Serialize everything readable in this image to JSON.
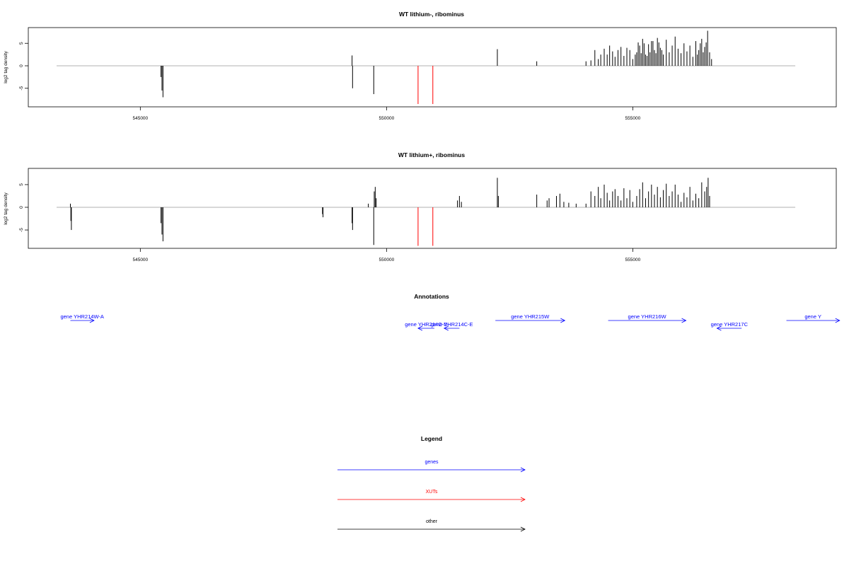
{
  "colors": {
    "black": "#000000",
    "red": "#ff0000",
    "blue": "#0000ff",
    "baseline": "#999999"
  },
  "chart_data": [
    {
      "type": "bar",
      "title": "WT lithium-, ribominus",
      "ylabel": "log2 tag density",
      "xlim": [
        543300,
        558500
      ],
      "ylim": [
        -8.5,
        8.5
      ],
      "xticks": [
        545000,
        550000,
        555000
      ],
      "yticks": [
        5,
        0,
        -5
      ],
      "black_bars": [
        {
          "x": 545420,
          "y": -2.5
        },
        {
          "x": 545440,
          "y": -5.5
        },
        {
          "x": 545460,
          "y": -7.0
        },
        {
          "x": 549300,
          "y": 2.3
        },
        {
          "x": 549310,
          "y": -5.0
        },
        {
          "x": 549740,
          "y": -6.3
        },
        {
          "x": 552250,
          "y": 3.7
        },
        {
          "x": 553050,
          "y": 1.0
        },
        {
          "x": 554050,
          "y": 1.0
        },
        {
          "x": 554150,
          "y": 1.2
        },
        {
          "x": 554230,
          "y": 3.5
        },
        {
          "x": 554300,
          "y": 1.5
        },
        {
          "x": 554350,
          "y": 2.5
        },
        {
          "x": 554420,
          "y": 3.8
        },
        {
          "x": 554480,
          "y": 2.5
        },
        {
          "x": 554530,
          "y": 4.5
        },
        {
          "x": 554590,
          "y": 3.2
        },
        {
          "x": 554640,
          "y": 2.0
        },
        {
          "x": 554700,
          "y": 3.5
        },
        {
          "x": 554760,
          "y": 4.2
        },
        {
          "x": 554820,
          "y": 2.2
        },
        {
          "x": 554880,
          "y": 4.0
        },
        {
          "x": 554940,
          "y": 3.5
        },
        {
          "x": 555000,
          "y": 1.5
        },
        {
          "x": 555080,
          "y": 3.0
        },
        {
          "x": 555140,
          "y": 4.5
        },
        {
          "x": 555200,
          "y": 6.0
        },
        {
          "x": 555260,
          "y": 2.5
        },
        {
          "x": 555320,
          "y": 4.8
        },
        {
          "x": 555380,
          "y": 5.5
        },
        {
          "x": 555440,
          "y": 3.5
        },
        {
          "x": 555500,
          "y": 6.2
        },
        {
          "x": 555560,
          "y": 4.0
        },
        {
          "x": 555620,
          "y": 2.5
        },
        {
          "x": 555680,
          "y": 5.8
        },
        {
          "x": 555740,
          "y": 3.0
        },
        {
          "x": 555800,
          "y": 4.5
        },
        {
          "x": 555860,
          "y": 6.5
        },
        {
          "x": 555920,
          "y": 3.8
        },
        {
          "x": 555980,
          "y": 2.8
        },
        {
          "x": 556040,
          "y": 5.0
        },
        {
          "x": 556100,
          "y": 3.2
        },
        {
          "x": 556160,
          "y": 4.5
        },
        {
          "x": 556220,
          "y": 2.0
        },
        {
          "x": 556280,
          "y": 5.5
        },
        {
          "x": 556340,
          "y": 3.5
        },
        {
          "x": 556400,
          "y": 6.0
        },
        {
          "x": 556460,
          "y": 4.2
        },
        {
          "x": 556520,
          "y": 7.8
        },
        {
          "x": 556560,
          "y": 3.0
        },
        {
          "x": 556600,
          "y": 1.5
        },
        {
          "x": 555050,
          "y": 2.5
        },
        {
          "x": 555110,
          "y": 5.2
        },
        {
          "x": 555170,
          "y": 2.8
        },
        {
          "x": 555230,
          "y": 5.0
        },
        {
          "x": 555290,
          "y": 2.2
        },
        {
          "x": 555350,
          "y": 3.0
        },
        {
          "x": 555410,
          "y": 5.5
        },
        {
          "x": 555470,
          "y": 2.8
        },
        {
          "x": 555530,
          "y": 5.2
        },
        {
          "x": 555590,
          "y": 3.5
        },
        {
          "x": 556310,
          "y": 2.5
        },
        {
          "x": 556370,
          "y": 5.0
        },
        {
          "x": 556430,
          "y": 3.0
        },
        {
          "x": 556490,
          "y": 5.2
        }
      ],
      "red_bars": [
        {
          "x": 550640,
          "y": -8.5
        },
        {
          "x": 550940,
          "y": -8.5
        }
      ]
    },
    {
      "type": "bar",
      "title": "WT lithium+, ribominus",
      "ylabel": "log2 tag density",
      "xlim": [
        543300,
        558500
      ],
      "ylim": [
        -8.5,
        8.5
      ],
      "xticks": [
        545000,
        550000,
        555000
      ],
      "yticks": [
        5,
        0,
        -5
      ],
      "black_bars": [
        {
          "x": 543580,
          "y": 0.8
        },
        {
          "x": 543590,
          "y": -3.0
        },
        {
          "x": 543600,
          "y": -5.0
        },
        {
          "x": 545420,
          "y": -3.5
        },
        {
          "x": 545440,
          "y": -6.0
        },
        {
          "x": 545460,
          "y": -7.5
        },
        {
          "x": 548700,
          "y": -1.5
        },
        {
          "x": 548710,
          "y": -2.2
        },
        {
          "x": 549300,
          "y": -3.5
        },
        {
          "x": 549310,
          "y": -5.0
        },
        {
          "x": 549630,
          "y": 0.8
        },
        {
          "x": 549740,
          "y": -8.3
        },
        {
          "x": 549750,
          "y": 3.5
        },
        {
          "x": 549770,
          "y": 4.5
        },
        {
          "x": 549790,
          "y": 2.0
        },
        {
          "x": 551440,
          "y": 1.5
        },
        {
          "x": 551480,
          "y": 2.5
        },
        {
          "x": 551520,
          "y": 1.2
        },
        {
          "x": 552250,
          "y": 6.5
        },
        {
          "x": 552270,
          "y": 2.5
        },
        {
          "x": 553050,
          "y": 2.8
        },
        {
          "x": 553260,
          "y": 1.5
        },
        {
          "x": 553300,
          "y": 2.0
        },
        {
          "x": 553450,
          "y": 2.5
        },
        {
          "x": 553520,
          "y": 3.0
        },
        {
          "x": 553600,
          "y": 1.2
        },
        {
          "x": 553700,
          "y": 1.0
        },
        {
          "x": 553850,
          "y": 0.8
        },
        {
          "x": 554050,
          "y": 0.8
        },
        {
          "x": 554150,
          "y": 3.5
        },
        {
          "x": 554230,
          "y": 2.5
        },
        {
          "x": 554300,
          "y": 4.5
        },
        {
          "x": 554350,
          "y": 2.0
        },
        {
          "x": 554420,
          "y": 5.0
        },
        {
          "x": 554480,
          "y": 3.2
        },
        {
          "x": 554530,
          "y": 1.5
        },
        {
          "x": 554590,
          "y": 3.5
        },
        {
          "x": 554640,
          "y": 4.0
        },
        {
          "x": 554700,
          "y": 2.5
        },
        {
          "x": 554760,
          "y": 1.5
        },
        {
          "x": 554820,
          "y": 4.2
        },
        {
          "x": 554880,
          "y": 2.0
        },
        {
          "x": 554940,
          "y": 3.8
        },
        {
          "x": 555000,
          "y": 1.2
        },
        {
          "x": 555080,
          "y": 2.5
        },
        {
          "x": 555140,
          "y": 4.0
        },
        {
          "x": 555200,
          "y": 5.5
        },
        {
          "x": 555260,
          "y": 2.0
        },
        {
          "x": 555320,
          "y": 3.5
        },
        {
          "x": 555380,
          "y": 5.0
        },
        {
          "x": 555440,
          "y": 2.8
        },
        {
          "x": 555500,
          "y": 4.5
        },
        {
          "x": 555560,
          "y": 2.2
        },
        {
          "x": 555620,
          "y": 3.8
        },
        {
          "x": 555680,
          "y": 5.2
        },
        {
          "x": 555740,
          "y": 2.5
        },
        {
          "x": 555800,
          "y": 3.5
        },
        {
          "x": 555860,
          "y": 5.0
        },
        {
          "x": 555920,
          "y": 2.8
        },
        {
          "x": 555980,
          "y": 1.2
        },
        {
          "x": 556040,
          "y": 3.2
        },
        {
          "x": 556100,
          "y": 2.2
        },
        {
          "x": 556160,
          "y": 4.5
        },
        {
          "x": 556220,
          "y": 1.5
        },
        {
          "x": 556280,
          "y": 3.0
        },
        {
          "x": 556340,
          "y": 2.0
        },
        {
          "x": 556400,
          "y": 5.5
        },
        {
          "x": 556460,
          "y": 3.5
        },
        {
          "x": 556500,
          "y": 4.5
        },
        {
          "x": 556530,
          "y": 6.5
        },
        {
          "x": 556560,
          "y": 2.5
        }
      ],
      "red_bars": [
        {
          "x": 550640,
          "y": -8.5
        },
        {
          "x": 550940,
          "y": -8.5
        }
      ]
    }
  ],
  "annotations": {
    "title": "Annotations",
    "xlim": [
      543300,
      558500
    ],
    "genes": [
      {
        "label": "gene YHR214W-A",
        "start": 543580,
        "end": 544060,
        "strand": "+",
        "row": 0
      },
      {
        "label": "gene YHR214C-D",
        "start": 550970,
        "end": 550640,
        "strand": "-",
        "row": 1
      },
      {
        "label": "gene YHR214C-E",
        "start": 551480,
        "end": 551170,
        "strand": "-",
        "row": 1
      },
      {
        "label": "gene YHR215W",
        "start": 552210,
        "end": 553620,
        "strand": "+",
        "row": 0
      },
      {
        "label": "gene YHR216W",
        "start": 554500,
        "end": 556080,
        "strand": "+",
        "row": 0
      },
      {
        "label": "gene YHR217C",
        "start": 557210,
        "end": 556710,
        "strand": "-",
        "row": 1
      },
      {
        "label": "gene Y",
        "start": 558120,
        "end": 559200,
        "strand": "+",
        "row": 0
      }
    ]
  },
  "legend": {
    "title": "Legend",
    "items": [
      {
        "label": "genes",
        "color": "#0000ff"
      },
      {
        "label": "XUTs",
        "color": "#ff0000"
      },
      {
        "label": "other",
        "color": "#000000"
      }
    ]
  }
}
